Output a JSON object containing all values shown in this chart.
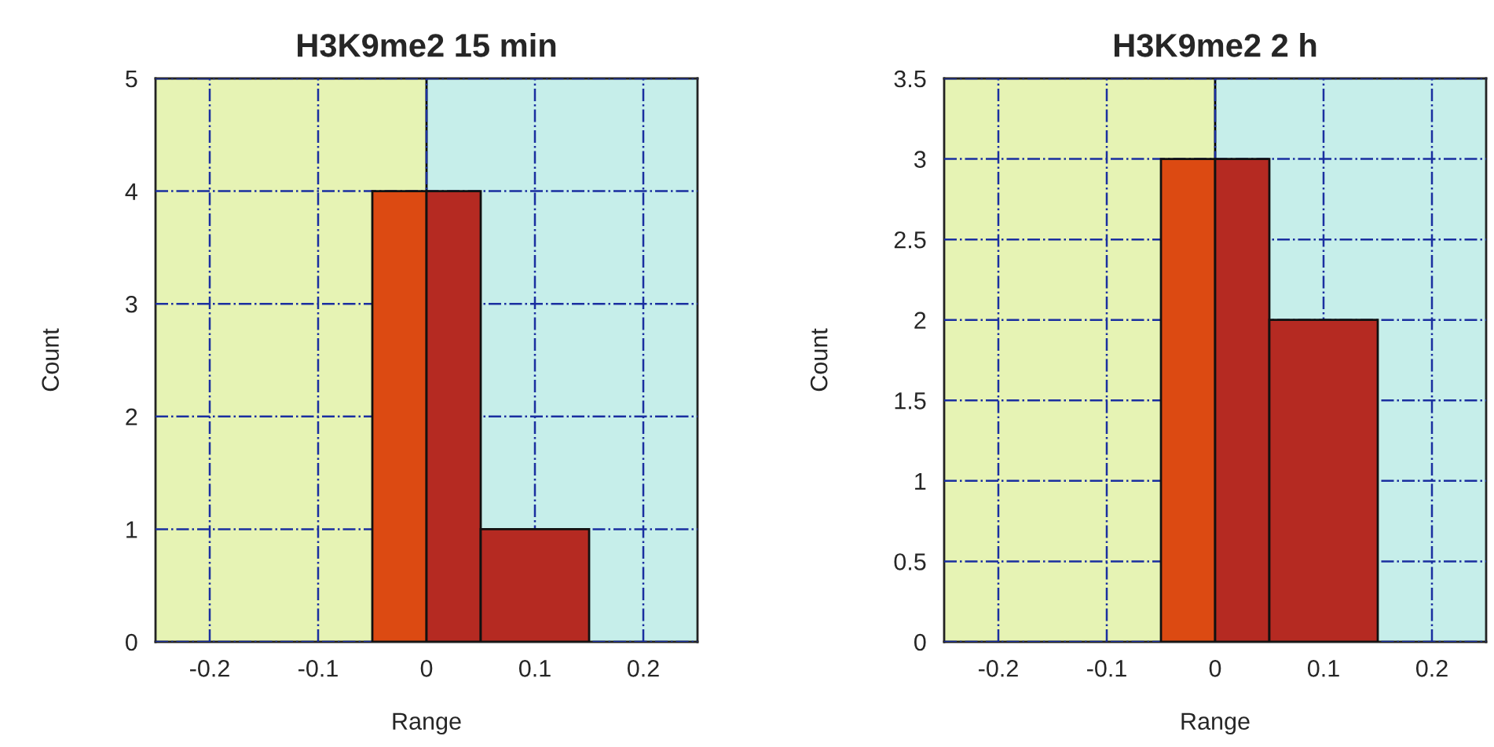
{
  "chart_data": [
    {
      "type": "histogram",
      "title": "H3K9me2 15 min",
      "xlabel": "Range",
      "ylabel": "Count",
      "bins": [
        -0.05,
        0,
        0.05,
        0.15
      ],
      "values": [
        4,
        4,
        1
      ],
      "colors": [
        "#dc4a12",
        "#b52a22",
        "#b52a22"
      ],
      "xlim": [
        -0.25,
        0.25
      ],
      "xticks": [
        -0.2,
        -0.1,
        0,
        0.1,
        0.2
      ],
      "ylim": [
        0,
        5
      ],
      "yticks": [
        0,
        1,
        2,
        3,
        4,
        5
      ],
      "grid": true,
      "bands": [
        {
          "axis": "x",
          "from": -0.25,
          "to": 0,
          "label": null,
          "color": "#e6f3b4"
        },
        {
          "axis": "x",
          "from": 0,
          "to": 0.25,
          "label": null,
          "color": "#c6eeea"
        }
      ],
      "ref_lines": [
        {
          "axis": "x",
          "value": 0,
          "label": null,
          "color": "#000000"
        }
      ]
    },
    {
      "type": "histogram",
      "title": "H3K9me2 2 h",
      "xlabel": "Range",
      "ylabel": "Count",
      "bins": [
        -0.05,
        0,
        0.05,
        0.15
      ],
      "values": [
        3,
        3,
        2
      ],
      "colors": [
        "#dc4a12",
        "#b52a22",
        "#b52a22"
      ],
      "xlim": [
        -0.25,
        0.25
      ],
      "xticks": [
        -0.2,
        -0.1,
        0,
        0.1,
        0.2
      ],
      "ylim": [
        0,
        3.5
      ],
      "yticks": [
        0,
        0.5,
        1,
        1.5,
        2,
        2.5,
        3,
        3.5
      ],
      "grid": true,
      "bands": [
        {
          "axis": "x",
          "from": -0.25,
          "to": 0,
          "label": null,
          "color": "#e6f3b4"
        },
        {
          "axis": "x",
          "from": 0,
          "to": 0.25,
          "label": null,
          "color": "#c6eeea"
        }
      ],
      "ref_lines": [
        {
          "axis": "x",
          "value": 0,
          "label": null,
          "color": "#000000"
        }
      ]
    }
  ]
}
